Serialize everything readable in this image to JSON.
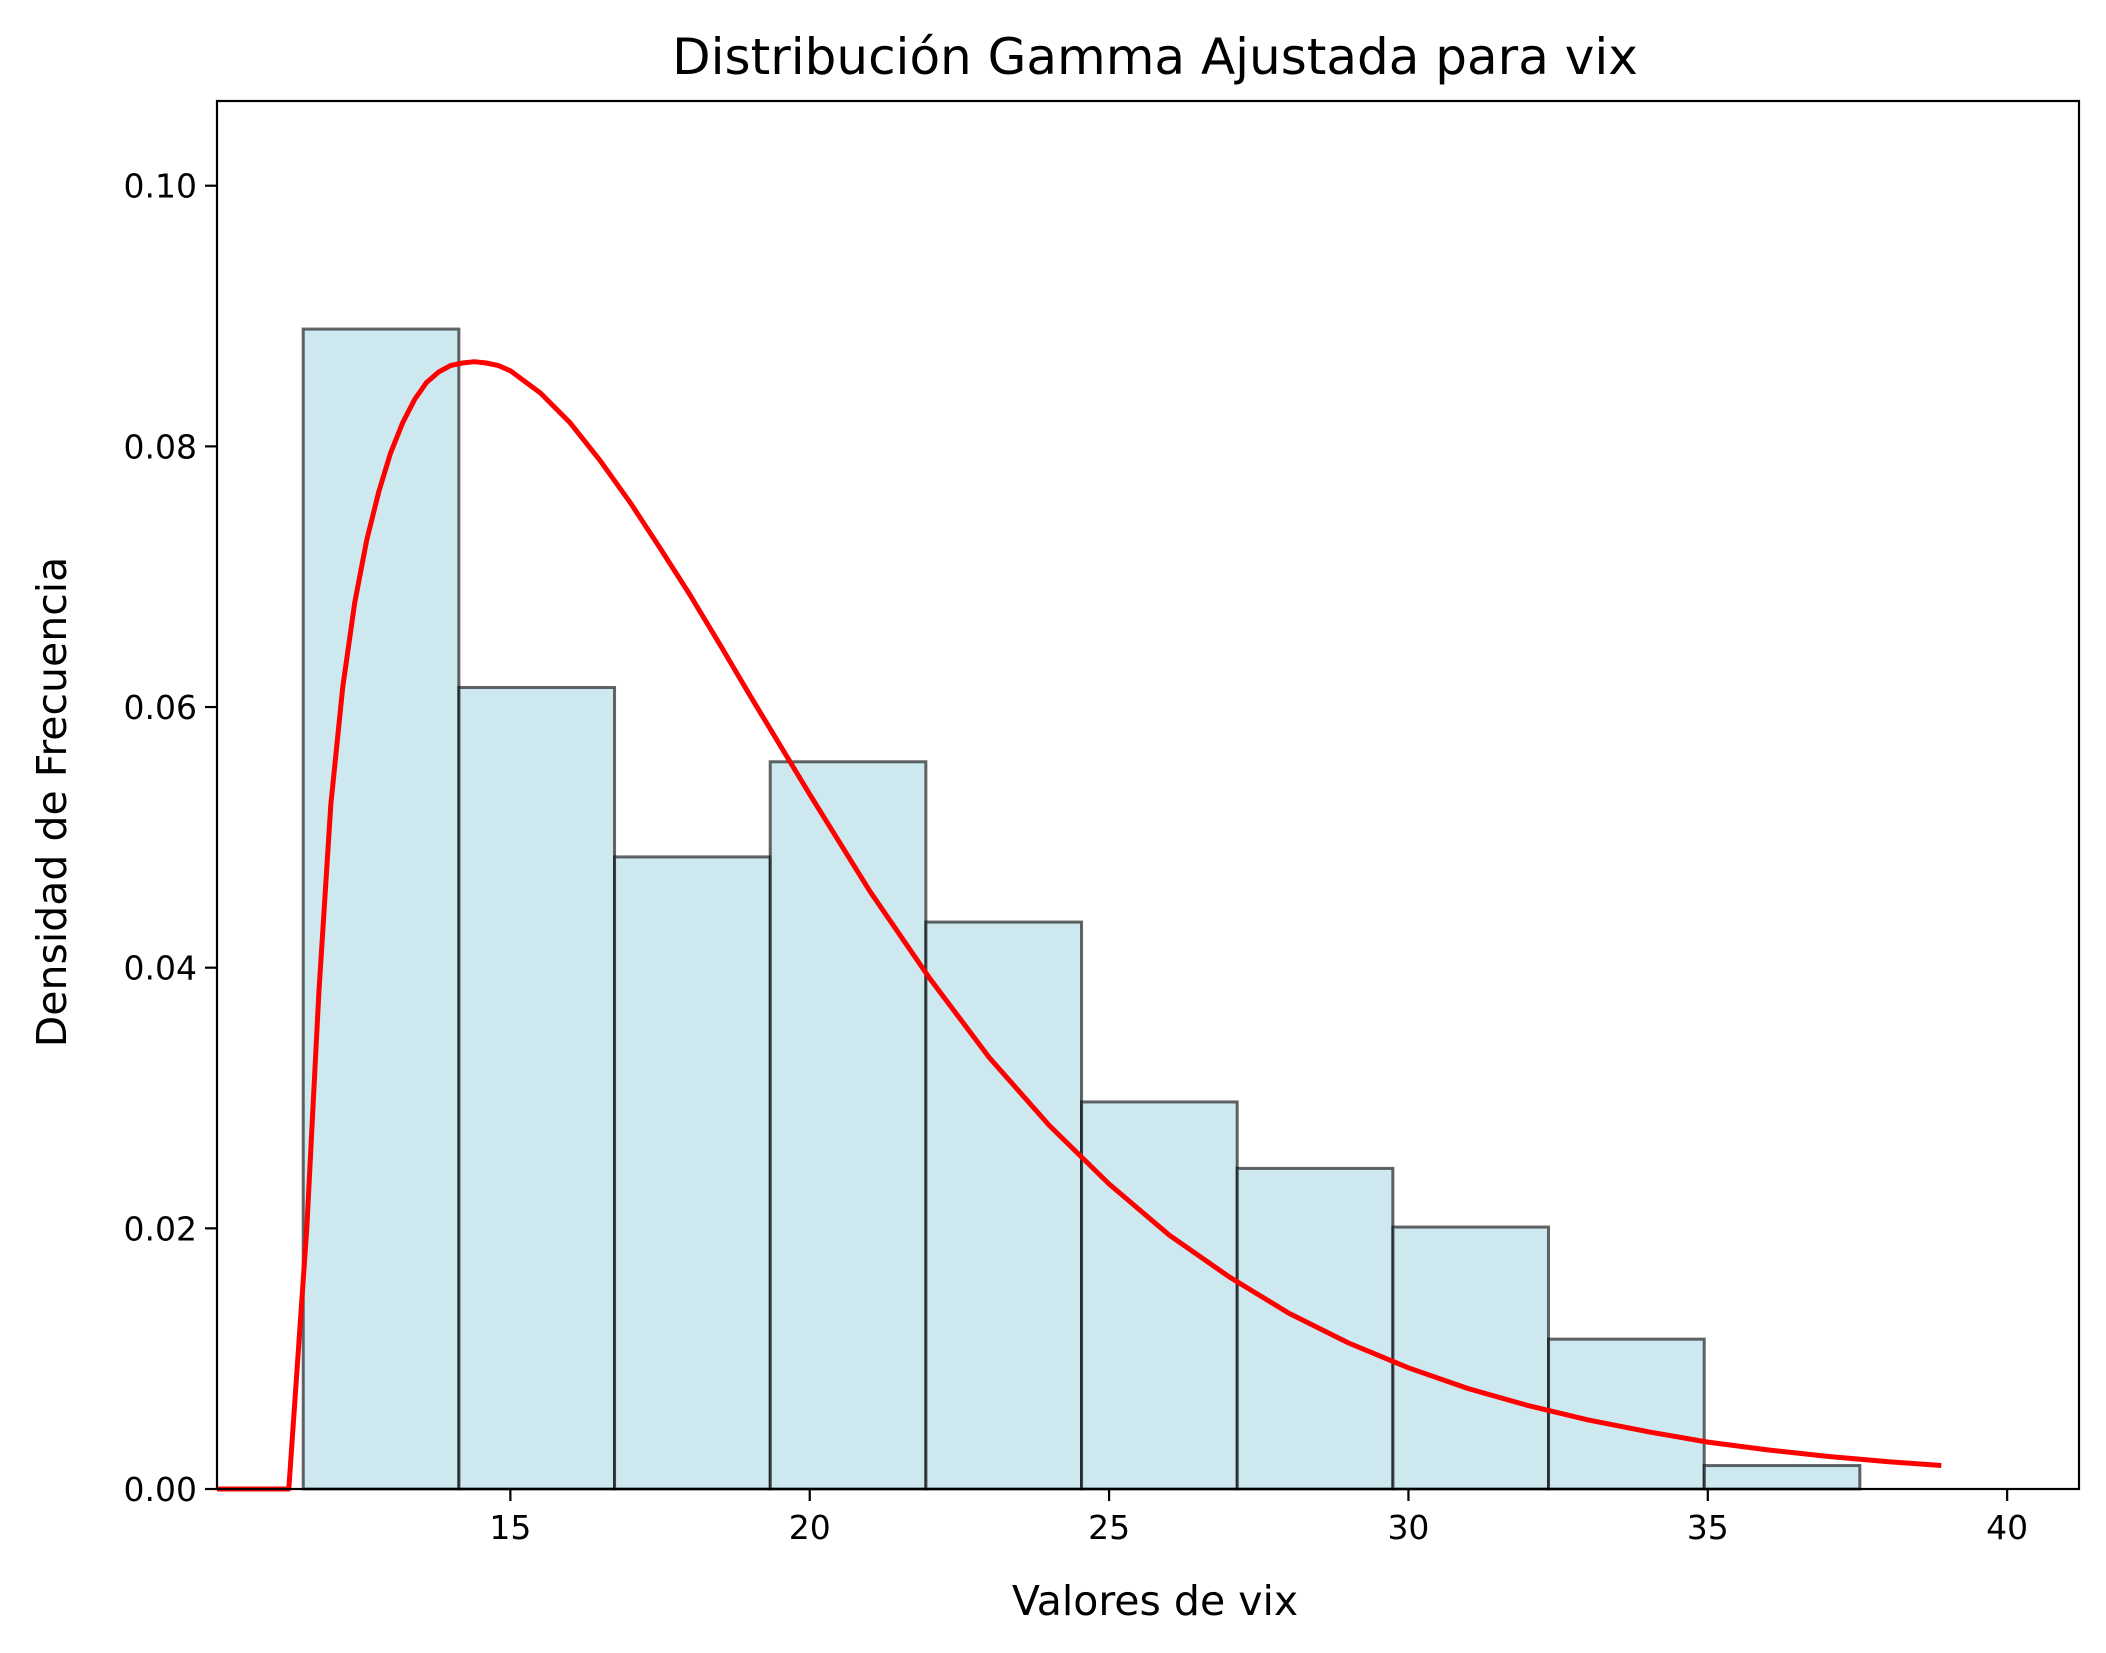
{
  "chart_data": {
    "type": "bar",
    "title": "Distribución Gamma Ajustada para vix",
    "xlabel": "Valores de vix",
    "ylabel": "Densidad de Frecuencia",
    "xlim": [
      10.1,
      41.2
    ],
    "ylim": [
      0,
      0.1065
    ],
    "xticks": [
      15,
      20,
      25,
      30,
      35,
      40
    ],
    "xtick_labels": [
      "15",
      "20",
      "25",
      "30",
      "35",
      "40"
    ],
    "yticks": [
      0,
      0.02,
      0.04,
      0.06,
      0.08,
      0.1
    ],
    "ytick_labels": [
      "0.00",
      "0.02",
      "0.04",
      "0.06",
      "0.08",
      "0.10"
    ],
    "grid": false,
    "legend": "none",
    "histogram": {
      "name": "",
      "bin_edges": [
        11.54,
        14.14,
        16.74,
        19.34,
        21.94,
        24.54,
        27.14,
        29.74,
        32.34,
        34.94,
        37.54
      ],
      "values": [
        0.089,
        0.0615,
        0.0485,
        0.0558,
        0.0435,
        0.0297,
        0.0246,
        0.0201,
        0.0115,
        0.0018
      ],
      "fill_color": "#add8e6",
      "edge_color": "#000000"
    },
    "fitted_curve": {
      "name": "",
      "color": "#ff0000",
      "x": [
        10.1,
        10.5,
        11.0,
        11.3,
        11.6,
        11.8,
        12.0,
        12.2,
        12.4,
        12.6,
        12.8,
        13.0,
        13.2,
        13.4,
        13.6,
        13.8,
        14.0,
        14.2,
        14.4,
        14.6,
        14.8,
        15.0,
        15.5,
        16.0,
        16.5,
        17.0,
        17.5,
        18.0,
        18.5,
        19.0,
        19.5,
        20.0,
        21.0,
        22.0,
        23.0,
        24.0,
        25.0,
        26.0,
        27.0,
        28.0,
        29.0,
        30.0,
        31.0,
        32.0,
        33.0,
        34.0,
        35.0,
        36.0,
        37.0,
        38.0,
        38.9
      ],
      "y": [
        0.0,
        0.0,
        0.0,
        0.0,
        0.02,
        0.038,
        0.0525,
        0.0615,
        0.068,
        0.0728,
        0.0765,
        0.0795,
        0.0818,
        0.0836,
        0.0849,
        0.0857,
        0.0862,
        0.0864,
        0.0865,
        0.0864,
        0.0862,
        0.0858,
        0.0841,
        0.0818,
        0.0789,
        0.0757,
        0.0722,
        0.0686,
        0.0648,
        0.0609,
        0.0571,
        0.0533,
        0.0459,
        0.0392,
        0.0331,
        0.0279,
        0.0234,
        0.0195,
        0.0163,
        0.0135,
        0.0112,
        0.0093,
        0.0077,
        0.0064,
        0.0053,
        0.0044,
        0.0036,
        0.003,
        0.0025,
        0.0021,
        0.0018
      ]
    }
  }
}
